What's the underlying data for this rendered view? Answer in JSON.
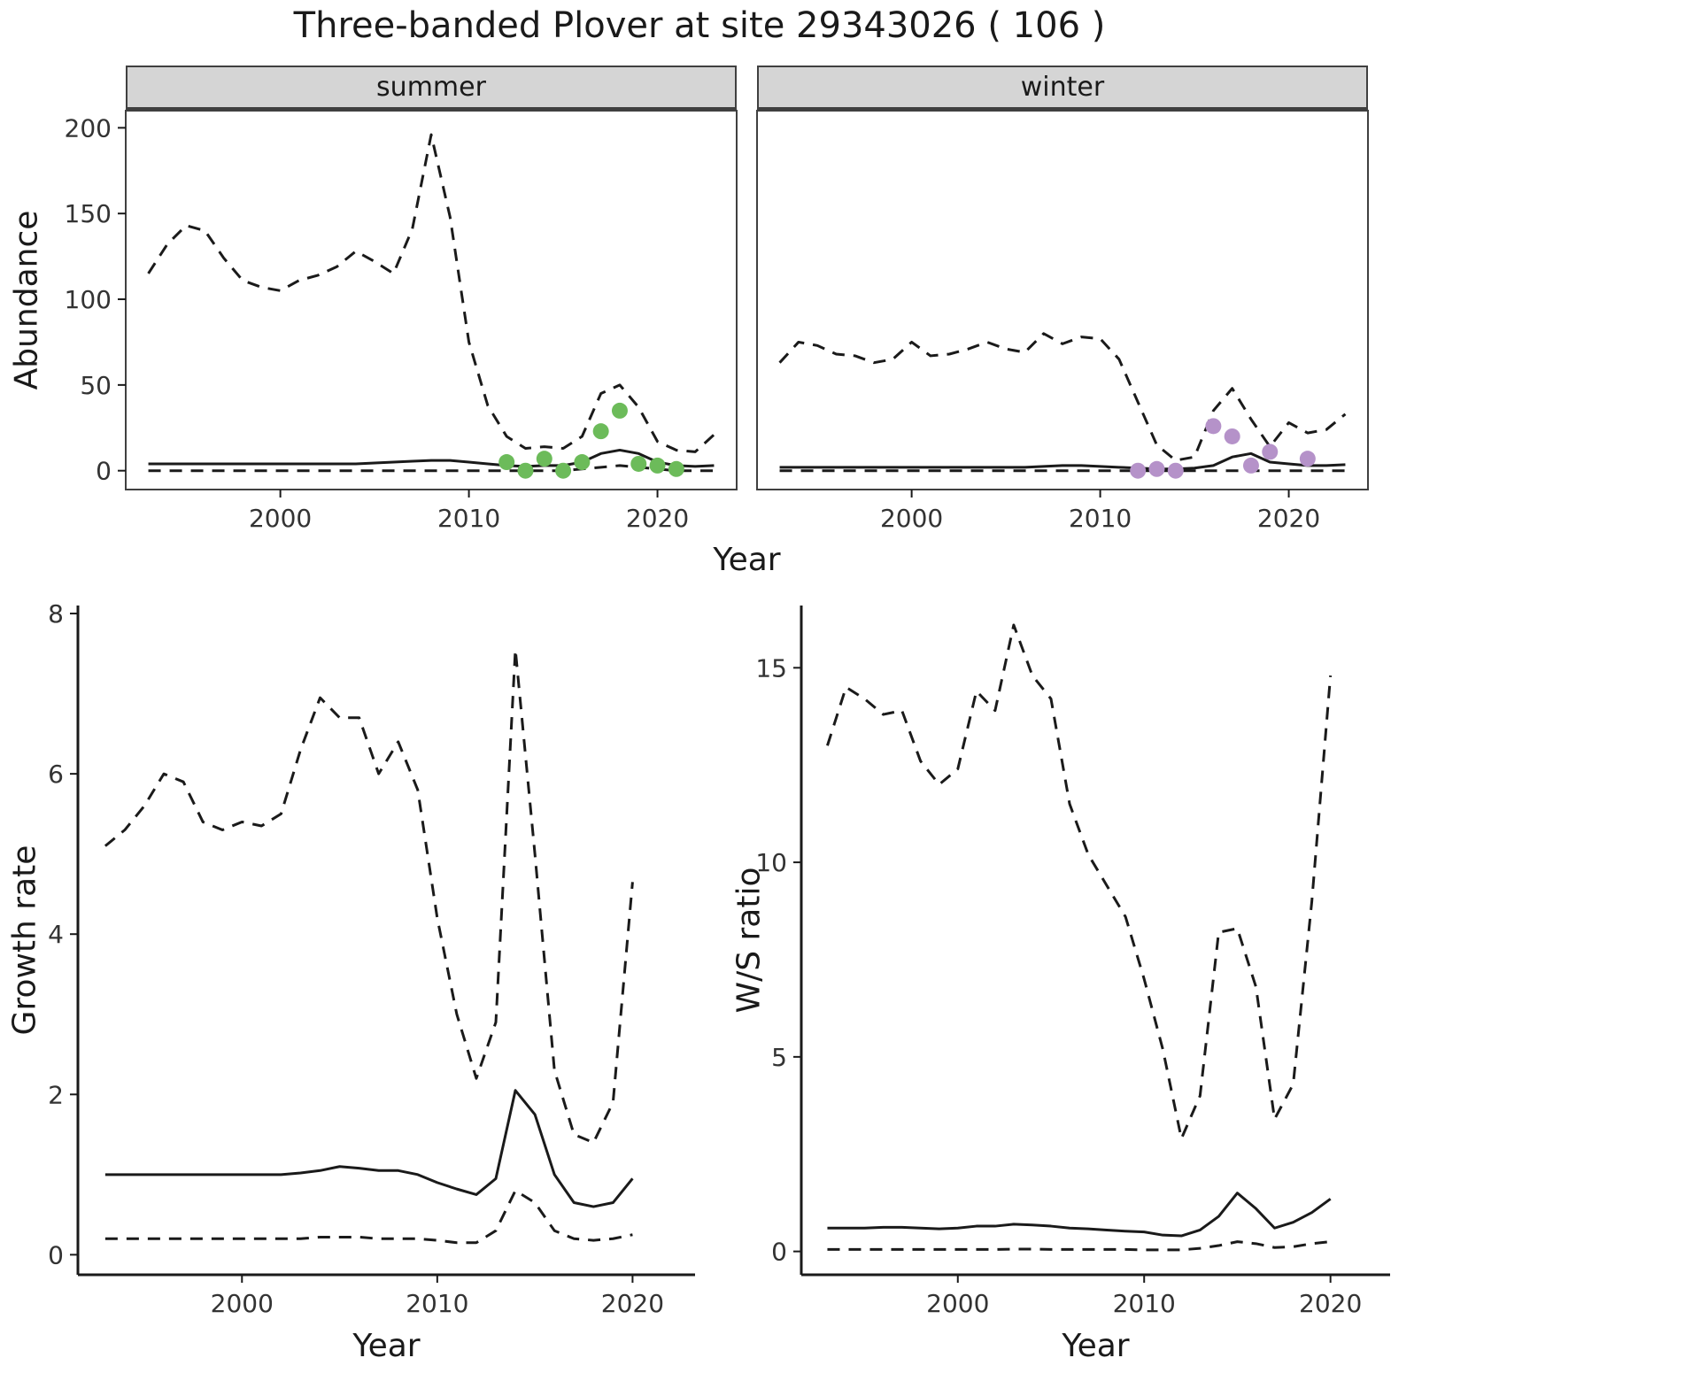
{
  "title": "Three-banded Plover at site 29343026 ( 106 )",
  "axis": {
    "year": "Year",
    "abundance": "Abundance",
    "growth_rate": "Growth rate",
    "ws_ratio": "W/S ratio"
  },
  "facets": {
    "summer": "summer",
    "winter": "winter"
  },
  "colors": {
    "line": "#1a1a1a",
    "summer_point": "#6cbb5a",
    "winter_point": "#b592c9",
    "strip_bg": "#d5d5d5",
    "panel_border": "#404040",
    "axis_text": "#333333"
  },
  "chart_data": [
    {
      "name": "abundance_summer",
      "type": "line",
      "title": "summer",
      "xlabel": "Year",
      "ylabel": "Abundance",
      "xlim": [
        1991.8,
        2024.2
      ],
      "ylim": [
        -11,
        210
      ],
      "xticks": [
        2000,
        2010,
        2020
      ],
      "yticks": [
        0,
        50,
        100,
        150,
        200
      ],
      "show_ytick_labels": true,
      "x": [
        1993,
        1994,
        1995,
        1996,
        1997,
        1998,
        1999,
        2000,
        2001,
        2002,
        2003,
        2004,
        2005,
        2006,
        2007,
        2008,
        2009,
        2010,
        2011,
        2012,
        2013,
        2014,
        2015,
        2016,
        2017,
        2018,
        2019,
        2020,
        2021,
        2022,
        2023
      ],
      "series": [
        {
          "name": "upper_95ci",
          "style": "dashed",
          "values": [
            115,
            132,
            143,
            140,
            124,
            111,
            107,
            105,
            111,
            114,
            119,
            128,
            122,
            115,
            141,
            196,
            148,
            75,
            38,
            20,
            13,
            14,
            13,
            20,
            45,
            50,
            37,
            17,
            12,
            11,
            21
          ]
        },
        {
          "name": "median",
          "style": "solid",
          "values": [
            4,
            4,
            4,
            4,
            4,
            4,
            4,
            4,
            4,
            4,
            4,
            4,
            4.5,
            5,
            5.5,
            6,
            6,
            5,
            4,
            3,
            2.5,
            3,
            3,
            5,
            10,
            12,
            10,
            5,
            3,
            2.5,
            3
          ]
        },
        {
          "name": "lower_95ci",
          "style": "dashed",
          "values": [
            0,
            0,
            0,
            0,
            0,
            0,
            0,
            0,
            0,
            0,
            0,
            0,
            0,
            0,
            0,
            0,
            0,
            0,
            0,
            0,
            0,
            0,
            0,
            1,
            2,
            3,
            2,
            1,
            0,
            0,
            0
          ]
        }
      ],
      "points": {
        "name": "observed_counts",
        "color_key": "summer_point",
        "x": [
          2012,
          2013,
          2014,
          2015,
          2016,
          2017,
          2018,
          2019,
          2020,
          2021
        ],
        "y": [
          5,
          0,
          7,
          0,
          5,
          23,
          35,
          4,
          3,
          1
        ]
      }
    },
    {
      "name": "abundance_winter",
      "type": "line",
      "title": "winter",
      "xlabel": "Year",
      "ylabel": "Abundance",
      "xlim": [
        1991.8,
        2024.2
      ],
      "ylim": [
        -11,
        210
      ],
      "xticks": [
        2000,
        2010,
        2020
      ],
      "yticks": [
        0,
        50,
        100,
        150,
        200
      ],
      "show_ytick_labels": false,
      "x": [
        1993,
        1994,
        1995,
        1996,
        1997,
        1998,
        1999,
        2000,
        2001,
        2002,
        2003,
        2004,
        2005,
        2006,
        2007,
        2008,
        2009,
        2010,
        2011,
        2012,
        2013,
        2014,
        2015,
        2016,
        2017,
        2018,
        2019,
        2020,
        2021,
        2022,
        2023
      ],
      "series": [
        {
          "name": "upper_95ci",
          "style": "dashed",
          "values": [
            63,
            75,
            73,
            68,
            67,
            63,
            65,
            75,
            67,
            68,
            71,
            75,
            71,
            69,
            80,
            74,
            78,
            77,
            65,
            40,
            15,
            6,
            8,
            35,
            48,
            30,
            14,
            28,
            22,
            24,
            33
          ]
        },
        {
          "name": "median",
          "style": "solid",
          "values": [
            2,
            2,
            2,
            2,
            2,
            2,
            2,
            2,
            2,
            2,
            2,
            2,
            2,
            2,
            2.5,
            3,
            3,
            2.5,
            2,
            1.5,
            1,
            1,
            1.5,
            3,
            8,
            10,
            5,
            4,
            3,
            3,
            3.5
          ]
        },
        {
          "name": "lower_95ci",
          "style": "dashed",
          "values": [
            0,
            0,
            0,
            0,
            0,
            0,
            0,
            0,
            0,
            0,
            0,
            0,
            0,
            0,
            0,
            0,
            0,
            0,
            0,
            0,
            0,
            0,
            0,
            0,
            0,
            0,
            0,
            0,
            0,
            0,
            0
          ]
        }
      ],
      "points": {
        "name": "observed_counts",
        "color_key": "winter_point",
        "x": [
          2012,
          2013,
          2014,
          2016,
          2017,
          2018,
          2019,
          2021
        ],
        "y": [
          0,
          1,
          0,
          26,
          20,
          3,
          11,
          7
        ]
      }
    },
    {
      "name": "growth_rate",
      "type": "line",
      "title": "Growth rate",
      "xlabel": "Year",
      "ylabel": "Growth rate",
      "xlim": [
        1991.6,
        2023.2
      ],
      "ylim": [
        -0.25,
        8.1
      ],
      "xticks": [
        2000,
        2010,
        2020
      ],
      "yticks": [
        0,
        2,
        4,
        6,
        8
      ],
      "show_ytick_labels": true,
      "x": [
        1993,
        1994,
        1995,
        1996,
        1997,
        1998,
        1999,
        2000,
        2001,
        2002,
        2003,
        2004,
        2005,
        2006,
        2007,
        2008,
        2009,
        2010,
        2011,
        2012,
        2013,
        2014,
        2015,
        2016,
        2017,
        2018,
        2019,
        2020
      ],
      "series": [
        {
          "name": "upper_95ci",
          "style": "dashed",
          "values": [
            5.1,
            5.3,
            5.6,
            6.0,
            5.9,
            5.4,
            5.3,
            5.4,
            5.35,
            5.5,
            6.3,
            6.95,
            6.7,
            6.7,
            6.0,
            6.4,
            5.8,
            4.2,
            3.0,
            2.2,
            2.9,
            7.55,
            5.0,
            2.3,
            1.5,
            1.4,
            1.9,
            4.65
          ]
        },
        {
          "name": "median",
          "style": "solid",
          "values": [
            1.0,
            1.0,
            1.0,
            1.0,
            1.0,
            1.0,
            1.0,
            1.0,
            1.0,
            1.0,
            1.02,
            1.05,
            1.1,
            1.08,
            1.05,
            1.05,
            1.0,
            0.9,
            0.82,
            0.75,
            0.95,
            2.05,
            1.75,
            1.0,
            0.65,
            0.6,
            0.65,
            0.95
          ]
        },
        {
          "name": "lower_95ci",
          "style": "dashed",
          "values": [
            0.2,
            0.2,
            0.2,
            0.2,
            0.2,
            0.2,
            0.2,
            0.2,
            0.2,
            0.2,
            0.2,
            0.22,
            0.22,
            0.22,
            0.2,
            0.2,
            0.2,
            0.18,
            0.15,
            0.15,
            0.3,
            0.8,
            0.65,
            0.3,
            0.2,
            0.18,
            0.2,
            0.25
          ]
        }
      ]
    },
    {
      "name": "ws_ratio",
      "type": "line",
      "title": "W/S ratio",
      "xlabel": "Year",
      "ylabel": "W/S ratio",
      "xlim": [
        1991.6,
        2023.2
      ],
      "ylim": [
        -0.6,
        16.6
      ],
      "xticks": [
        2000,
        2010,
        2020
      ],
      "yticks": [
        0,
        5,
        10,
        15
      ],
      "show_ytick_labels": true,
      "x": [
        1993,
        1994,
        1995,
        1996,
        1997,
        1998,
        1999,
        2000,
        2001,
        2002,
        2003,
        2004,
        2005,
        2006,
        2007,
        2008,
        2009,
        2010,
        2011,
        2012,
        2013,
        2014,
        2015,
        2016,
        2017,
        2018,
        2019,
        2020
      ],
      "series": [
        {
          "name": "upper_95ci",
          "style": "dashed",
          "values": [
            13.0,
            14.5,
            14.2,
            13.8,
            13.9,
            12.6,
            12.0,
            12.4,
            14.4,
            13.9,
            16.1,
            14.8,
            14.2,
            11.5,
            10.2,
            9.4,
            8.6,
            7.0,
            5.2,
            2.9,
            4.0,
            8.2,
            8.3,
            6.8,
            3.4,
            4.3,
            9.0,
            14.8
          ]
        },
        {
          "name": "median",
          "style": "solid",
          "values": [
            0.6,
            0.6,
            0.6,
            0.62,
            0.62,
            0.6,
            0.58,
            0.6,
            0.65,
            0.65,
            0.7,
            0.68,
            0.65,
            0.6,
            0.58,
            0.55,
            0.52,
            0.5,
            0.42,
            0.4,
            0.55,
            0.9,
            1.5,
            1.1,
            0.6,
            0.75,
            1.0,
            1.35
          ]
        },
        {
          "name": "lower_95ci",
          "style": "dashed",
          "values": [
            0.05,
            0.05,
            0.05,
            0.05,
            0.05,
            0.05,
            0.05,
            0.05,
            0.05,
            0.05,
            0.06,
            0.06,
            0.05,
            0.05,
            0.05,
            0.05,
            0.05,
            0.04,
            0.04,
            0.04,
            0.08,
            0.15,
            0.25,
            0.2,
            0.1,
            0.12,
            0.2,
            0.25
          ]
        }
      ]
    }
  ]
}
